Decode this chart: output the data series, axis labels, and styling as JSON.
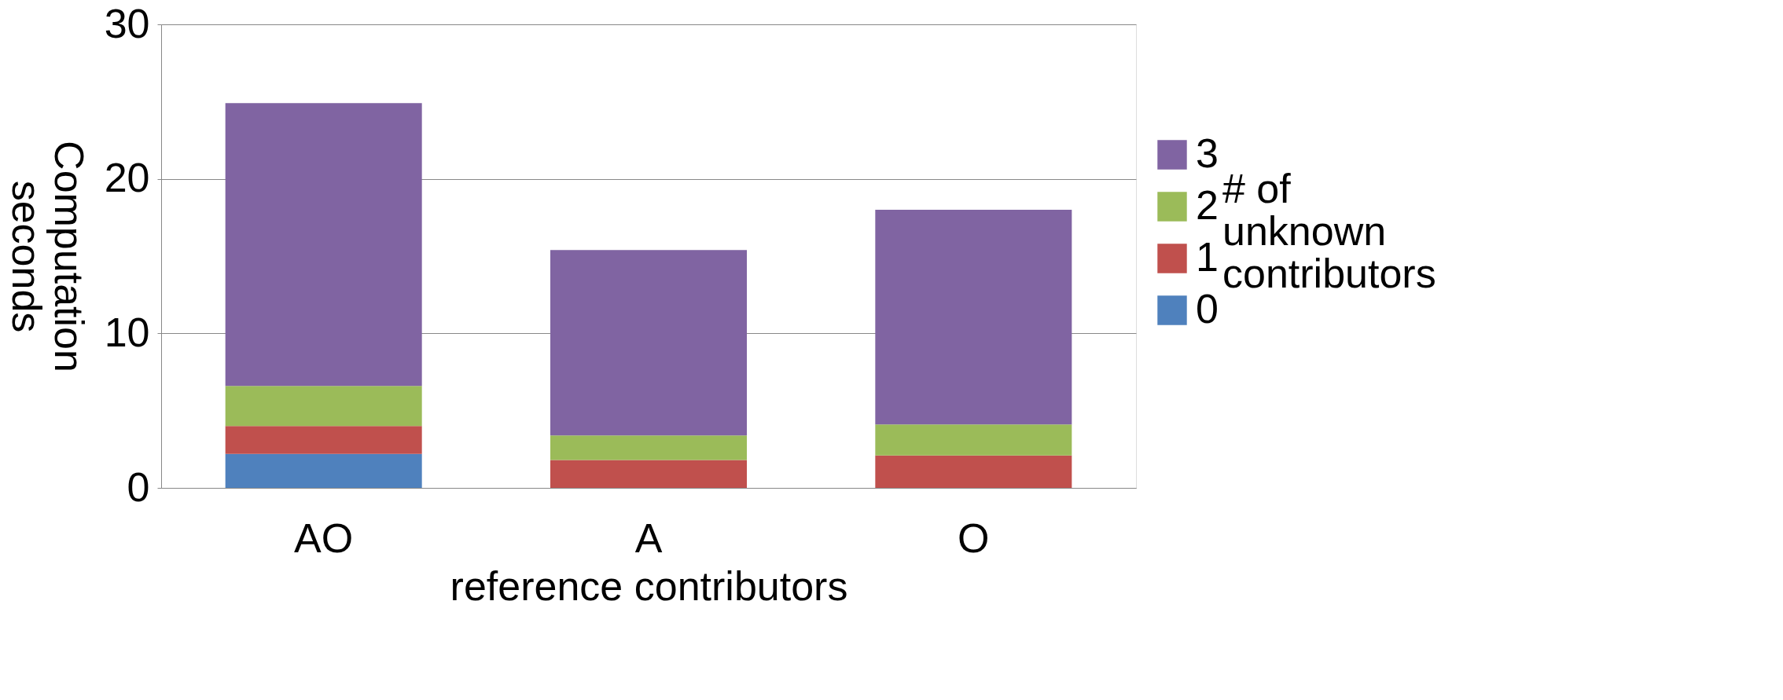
{
  "chart_data": {
    "type": "bar",
    "stacked": true,
    "xlabel": "reference contributors",
    "ylabel": "Computation\nseconds",
    "legend_title": "# of\nunknown\ncontributors",
    "categories": [
      "AO",
      "A",
      "O"
    ],
    "series": [
      {
        "name": "0",
        "color": "#4f81bd",
        "values": [
          2.2,
          0,
          0
        ]
      },
      {
        "name": "1",
        "color": "#c0504d",
        "values": [
          1.8,
          1.8,
          2.1
        ]
      },
      {
        "name": "2",
        "color": "#9bbb59",
        "values": [
          2.6,
          1.6,
          2.0
        ]
      },
      {
        "name": "3",
        "color": "#8064a2",
        "values": [
          18.3,
          12.0,
          13.9
        ]
      }
    ],
    "ylim": [
      0,
      30
    ],
    "yticks": [
      0,
      10,
      20,
      30
    ],
    "grid": "y",
    "legend": "right"
  }
}
